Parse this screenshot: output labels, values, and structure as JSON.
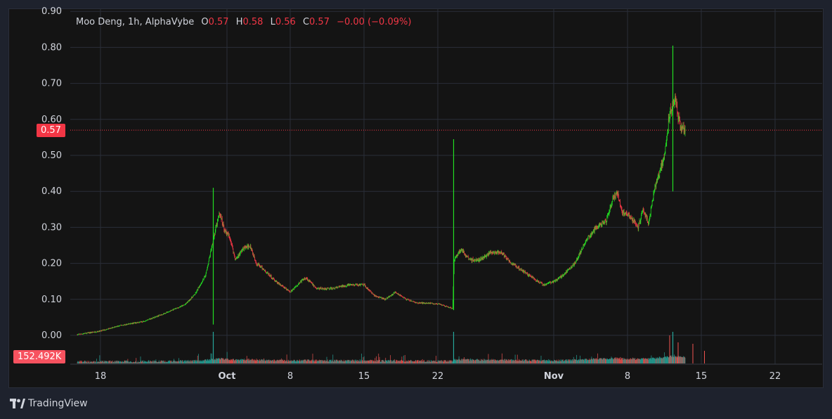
{
  "legend": {
    "symbol": "Moo Deng, 1h, AlphaVybe",
    "o_label": "O",
    "o_value": "0.57",
    "h_label": "H",
    "h_value": "0.58",
    "l_label": "L",
    "l_value": "0.56",
    "c_label": "C",
    "c_value": "0.57",
    "change": "−0.00 (−0.09%)"
  },
  "price_badge": "0.57",
  "volume_badge": "152.492K",
  "brand": "TradingView",
  "colors": {
    "up": "#22dd22",
    "down": "#f23645",
    "vol_up": "#26a69a",
    "vol_down": "#ef5350",
    "grid": "#2a2e39"
  },
  "chart_data": {
    "type": "candlestick",
    "interval": "1h",
    "y_ticks": [
      "0.00",
      "0.10",
      "0.20",
      "0.30",
      "0.40",
      "0.50",
      "0.60",
      "0.70",
      "0.80",
      "0.90"
    ],
    "ylim": [
      0,
      0.9
    ],
    "x_ticks": [
      {
        "label": "18",
        "day": 0
      },
      {
        "label": "Oct",
        "day": 12
      },
      {
        "label": "8",
        "day": 18
      },
      {
        "label": "15",
        "day": 25
      },
      {
        "label": "22",
        "day": 32
      },
      {
        "label": "Nov",
        "day": 43
      },
      {
        "label": "8",
        "day": 50
      },
      {
        "label": "15",
        "day": 57
      },
      {
        "label": "22",
        "day": 64
      }
    ],
    "last_price": 0.57,
    "price_path": [
      [
        -2.2,
        0.002
      ],
      [
        0,
        0.012
      ],
      [
        2,
        0.028
      ],
      [
        4,
        0.038
      ],
      [
        6,
        0.06
      ],
      [
        8,
        0.085
      ],
      [
        9,
        0.115
      ],
      [
        10,
        0.17
      ],
      [
        10.8,
        0.28
      ],
      [
        11.3,
        0.34
      ],
      [
        11.8,
        0.29
      ],
      [
        12.3,
        0.27
      ],
      [
        12.8,
        0.21
      ],
      [
        13.5,
        0.24
      ],
      [
        14.2,
        0.25
      ],
      [
        14.8,
        0.2
      ],
      [
        15.6,
        0.18
      ],
      [
        16.6,
        0.15
      ],
      [
        18,
        0.12
      ],
      [
        19,
        0.15
      ],
      [
        19.5,
        0.16
      ],
      [
        20.5,
        0.13
      ],
      [
        22,
        0.13
      ],
      [
        23.5,
        0.14
      ],
      [
        25,
        0.14
      ],
      [
        26,
        0.11
      ],
      [
        27,
        0.1
      ],
      [
        28,
        0.12
      ],
      [
        29,
        0.1
      ],
      [
        30,
        0.09
      ],
      [
        31,
        0.09
      ],
      [
        32,
        0.087
      ],
      [
        33.4,
        0.075
      ],
      [
        33.55,
        0.21
      ],
      [
        34.2,
        0.24
      ],
      [
        35,
        0.21
      ],
      [
        36,
        0.21
      ],
      [
        37,
        0.23
      ],
      [
        38,
        0.23
      ],
      [
        39,
        0.2
      ],
      [
        40,
        0.18
      ],
      [
        41,
        0.16
      ],
      [
        42,
        0.14
      ],
      [
        43,
        0.15
      ],
      [
        44,
        0.17
      ],
      [
        45,
        0.2
      ],
      [
        46,
        0.26
      ],
      [
        47,
        0.3
      ],
      [
        48,
        0.32
      ],
      [
        48.5,
        0.37
      ],
      [
        49,
        0.4
      ],
      [
        49.5,
        0.34
      ],
      [
        50,
        0.34
      ],
      [
        51,
        0.3
      ],
      [
        51.5,
        0.35
      ],
      [
        52,
        0.31
      ],
      [
        52.5,
        0.4
      ],
      [
        53,
        0.45
      ],
      [
        53.5,
        0.5
      ],
      [
        54,
        0.62
      ],
      [
        54.5,
        0.66
      ],
      [
        55,
        0.58
      ],
      [
        55.5,
        0.57
      ]
    ],
    "spikes": [
      {
        "day": 10.7,
        "high": 0.41,
        "low": 0.03
      },
      {
        "day": 33.5,
        "high": 0.545,
        "low": 0.07
      },
      {
        "day": 54.3,
        "high": 0.805,
        "low": 0.4
      }
    ]
  }
}
